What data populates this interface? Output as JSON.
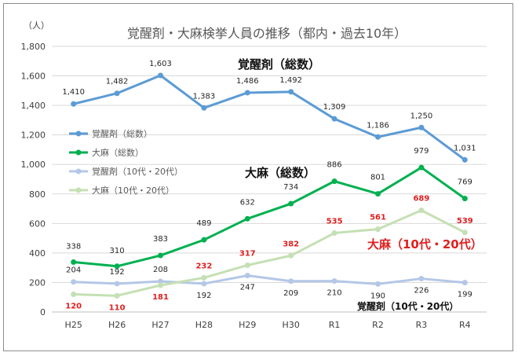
{
  "chart_data": {
    "type": "line",
    "title": "覚醒剤・大麻検挙人員の推移（都内・過去10年）",
    "yunit": "（人）",
    "categories": [
      "H25",
      "H26",
      "H27",
      "H28",
      "H29",
      "H30",
      "R1",
      "R2",
      "R3",
      "R4"
    ],
    "ylim": [
      0,
      1800
    ],
    "yticks": [
      "0",
      "200",
      "400",
      "600",
      "800",
      "1,000",
      "1,200",
      "1,400",
      "1,600",
      "1,800"
    ],
    "grid": true,
    "legend_position": "left",
    "series": [
      {
        "name": "覚醒剤（総数）",
        "color": "#5b9bd5",
        "values": [
          1410,
          1482,
          1603,
          1383,
          1486,
          1492,
          1309,
          1186,
          1250,
          1031
        ],
        "labels": [
          "1,410",
          "1,482",
          "1,603",
          "1,383",
          "1,486",
          "1,492",
          "1,309",
          "1,186",
          "1,250",
          "1,031"
        ]
      },
      {
        "name": "大麻（総数）",
        "color": "#00b050",
        "values": [
          338,
          310,
          383,
          489,
          632,
          734,
          886,
          801,
          979,
          769
        ],
        "labels": [
          "338",
          "310",
          "383",
          "489",
          "632",
          "734",
          "886",
          "801",
          "979",
          "769"
        ]
      },
      {
        "name": "覚醒剤（10代・20代）",
        "color": "#b4c7e7",
        "values": [
          204,
          192,
          208,
          192,
          247,
          209,
          210,
          190,
          226,
          199
        ],
        "labels": [
          "204",
          "192",
          "208",
          "192",
          "247",
          "209",
          "210",
          "190",
          "226",
          "199"
        ]
      },
      {
        "name": "大麻（10代・20代）",
        "color": "#c5e0b4",
        "values": [
          120,
          110,
          181,
          232,
          317,
          382,
          535,
          561,
          689,
          539
        ],
        "labels": [
          "120",
          "110",
          "181",
          "232",
          "317",
          "382",
          "535",
          "561",
          "689",
          "539"
        ]
      }
    ],
    "annotations": {
      "stim_total": "覚醒剤（総数）",
      "cannabis_total": "大麻（総数）",
      "cannabis_youth": "大麻（10代・20代）",
      "stim_youth": "覚醒剤（10代・20代）"
    }
  }
}
